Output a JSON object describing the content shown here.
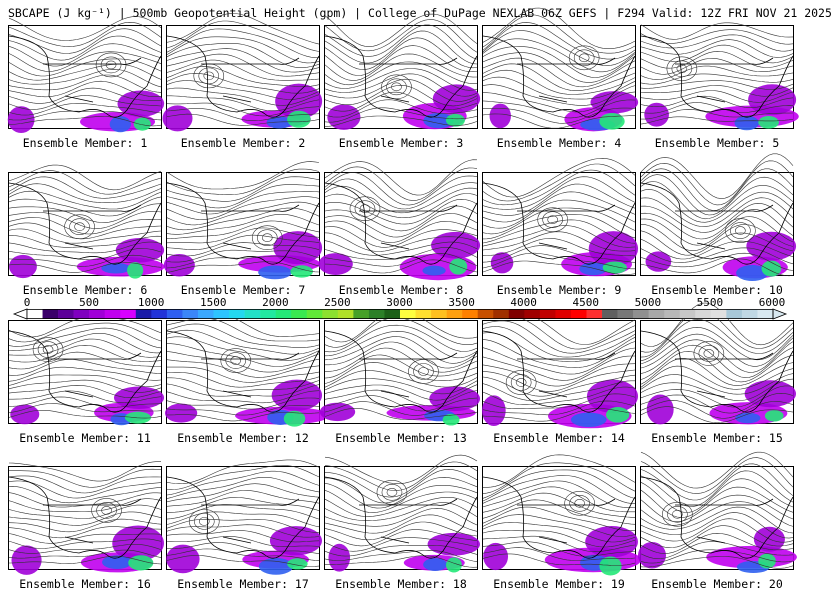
{
  "header": {
    "title": "SBCAPE (J kg⁻¹) | 500mb Geopotential Height (gpm) | College of DuPage NEXLAB 06Z GEFS | F294 Valid: 12Z FRI NOV 21 2025"
  },
  "colorbar": {
    "tick_labels": [
      "0",
      "500",
      "1000",
      "1500",
      "2000",
      "2500",
      "3000",
      "3500",
      "4000",
      "4500",
      "5000",
      "5500",
      "6000"
    ],
    "colors": [
      "#ffffff",
      "#3a006a",
      "#5c0099",
      "#7f00bf",
      "#a000d8",
      "#c000ee",
      "#d800ff",
      "#1a1aa8",
      "#2233d8",
      "#2f5ff0",
      "#3b86f8",
      "#3aa8ff",
      "#2ec4ff",
      "#24d8f0",
      "#23e0c8",
      "#22e8a0",
      "#24e878",
      "#39e850",
      "#60e838",
      "#8ce030",
      "#b0e028",
      "#46a028",
      "#2c8028",
      "#1c6018",
      "#ffff40",
      "#ffe030",
      "#ffc020",
      "#ffa010",
      "#ff8000",
      "#c85000",
      "#a03000",
      "#800000",
      "#a00000",
      "#c00000",
      "#e00000",
      "#ff0000",
      "#ff3030",
      "#606060",
      "#787878",
      "#909090",
      "#a8a8a8",
      "#b8b8b8",
      "#c8c8c8",
      "#d8d8d8",
      "#e0e0e0",
      "#a8c8d8",
      "#c0d8e4",
      "#d8e8f0"
    ]
  },
  "members": [
    {
      "label": "Ensemble Member: 1"
    },
    {
      "label": "Ensemble Member: 2"
    },
    {
      "label": "Ensemble Member: 3"
    },
    {
      "label": "Ensemble Member: 4"
    },
    {
      "label": "Ensemble Member: 5"
    },
    {
      "label": "Ensemble Member: 6"
    },
    {
      "label": "Ensemble Member: 7"
    },
    {
      "label": "Ensemble Member: 8"
    },
    {
      "label": "Ensemble Member: 9"
    },
    {
      "label": "Ensemble Member: 10"
    },
    {
      "label": "Ensemble Member: 11"
    },
    {
      "label": "Ensemble Member: 12"
    },
    {
      "label": "Ensemble Member: 13"
    },
    {
      "label": "Ensemble Member: 14"
    },
    {
      "label": "Ensemble Member: 15"
    },
    {
      "label": "Ensemble Member: 16"
    },
    {
      "label": "Ensemble Member: 17"
    },
    {
      "label": "Ensemble Member: 18"
    },
    {
      "label": "Ensemble Member: 19"
    },
    {
      "label": "Ensemble Member: 20"
    }
  ]
}
